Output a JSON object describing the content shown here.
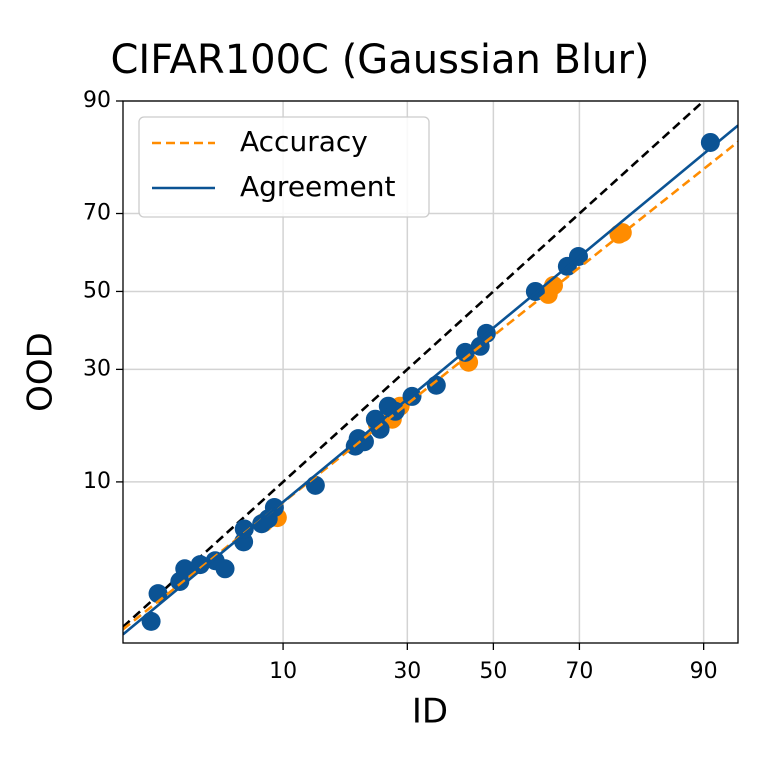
{
  "chart_data": {
    "type": "scatter",
    "title": "CIFAR100C (Gaussian Blur)",
    "x_label": "ID",
    "y_label": "OOD",
    "scale": "probit",
    "grid": true,
    "legend": "upper left",
    "xlim": [
      1.2,
      93.2
    ],
    "ylim": [
      0.9,
      90
    ],
    "xticks": [
      10,
      30,
      50,
      70,
      90
    ],
    "yticks": [
      10,
      30,
      50,
      70,
      90
    ],
    "reference_line": {
      "color": "#000000",
      "x": [
        1.2,
        93.2
      ],
      "values": [
        1.2,
        93.2
      ]
    },
    "series": [
      {
        "name": "Accuracy",
        "color": "#ff8c00",
        "x": [
          8.1,
          9.4,
          24.0,
          26.9,
          28.5,
          44.0,
          63.1,
          64.3,
          77.8,
          78.4
        ],
        "values": [
          6.0,
          6.4,
          18.5,
          19.5,
          22.0,
          31.7,
          49.2,
          51.6,
          65.0,
          65.4
        ],
        "fit": {
          "x": [
            1.2,
            93.2
          ],
          "values": [
            1.15,
            84.3
          ]
        }
      },
      {
        "name": "Agreement",
        "color": "#0b5394",
        "x": [
          1.85,
          2.05,
          2.8,
          3.0,
          3.7,
          4.5,
          5.1,
          6.4,
          6.45,
          7.9,
          8.5,
          9.1,
          13.9,
          20,
          20.5,
          21.6,
          23.6,
          24.5,
          26.1,
          27.5,
          31,
          36.4,
          43.2,
          46.8,
          48.3,
          60.1,
          67.4,
          69.8,
          90.7
        ],
        "values": [
          1.32,
          2.1,
          2.55,
          3.1,
          3.3,
          3.5,
          3.1,
          4.6,
          5.5,
          5.9,
          6.3,
          7.3,
          9.6,
          14.9,
          16.1,
          15.6,
          19.5,
          17.7,
          22,
          21,
          24,
          26.4,
          34.1,
          35.6,
          38.9,
          50,
          56.7,
          59.3,
          84.2
        ],
        "fit": {
          "x": [
            1.2,
            93.2
          ],
          "values": [
            1.05,
            86.8
          ]
        }
      }
    ]
  }
}
